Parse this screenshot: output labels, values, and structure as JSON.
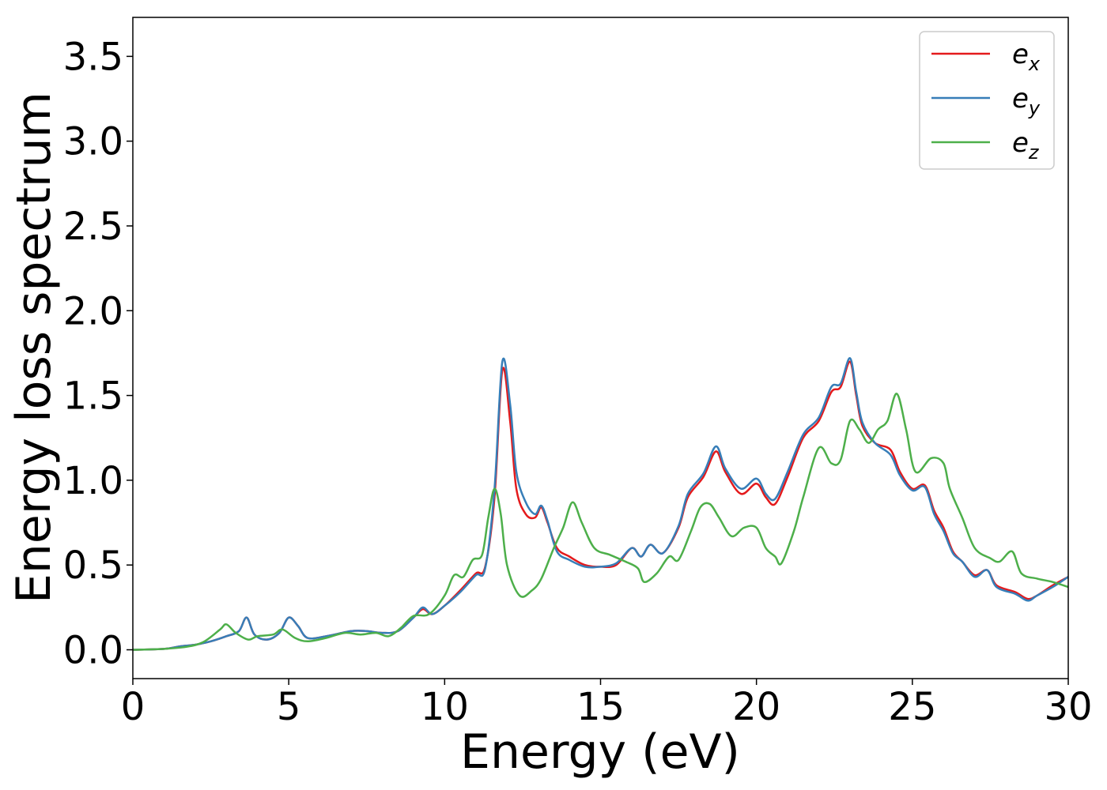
{
  "chart_data": {
    "type": "line",
    "xlabel": "Energy (eV)",
    "ylabel": "Energy loss spectrum",
    "xlim": [
      0,
      30
    ],
    "ylim": [
      -0.17,
      3.73
    ],
    "xticks": [
      "0",
      "5",
      "10",
      "15",
      "20",
      "25",
      "30"
    ],
    "yticks": [
      "0.0",
      "0.5",
      "1.0",
      "1.5",
      "2.0",
      "2.5",
      "3.0",
      "3.5"
    ],
    "grid": false,
    "legend_position": "top-right",
    "series": [
      {
        "name": "e_x",
        "label_main": "e",
        "label_sub": "x",
        "color": "#e41a1c",
        "points": [
          [
            0,
            0.0
          ],
          [
            1,
            0.005
          ],
          [
            1.5,
            0.02
          ],
          [
            2,
            0.03
          ],
          [
            2.5,
            0.05
          ],
          [
            3,
            0.08
          ],
          [
            3.4,
            0.11
          ],
          [
            3.65,
            0.19
          ],
          [
            3.9,
            0.09
          ],
          [
            4.3,
            0.06
          ],
          [
            4.7,
            0.1
          ],
          [
            5.0,
            0.19
          ],
          [
            5.3,
            0.14
          ],
          [
            5.6,
            0.07
          ],
          [
            6.2,
            0.08
          ],
          [
            7,
            0.11
          ],
          [
            7.5,
            0.11
          ],
          [
            8,
            0.1
          ],
          [
            8.5,
            0.11
          ],
          [
            9,
            0.19
          ],
          [
            9.3,
            0.24
          ],
          [
            9.6,
            0.21
          ],
          [
            10,
            0.26
          ],
          [
            10.5,
            0.35
          ],
          [
            11,
            0.45
          ],
          [
            11.3,
            0.49
          ],
          [
            11.6,
            0.9
          ],
          [
            11.85,
            1.65
          ],
          [
            12.1,
            1.35
          ],
          [
            12.3,
            0.95
          ],
          [
            12.6,
            0.8
          ],
          [
            12.9,
            0.78
          ],
          [
            13.1,
            0.84
          ],
          [
            13.3,
            0.75
          ],
          [
            13.6,
            0.6
          ],
          [
            14,
            0.55
          ],
          [
            14.5,
            0.5
          ],
          [
            15,
            0.49
          ],
          [
            15.5,
            0.5
          ],
          [
            16,
            0.6
          ],
          [
            16.3,
            0.55
          ],
          [
            16.6,
            0.62
          ],
          [
            17,
            0.57
          ],
          [
            17.5,
            0.72
          ],
          [
            17.8,
            0.9
          ],
          [
            18.3,
            1.02
          ],
          [
            18.7,
            1.17
          ],
          [
            19,
            1.05
          ],
          [
            19.5,
            0.92
          ],
          [
            20,
            0.98
          ],
          [
            20.3,
            0.9
          ],
          [
            20.6,
            0.86
          ],
          [
            21,
            1.02
          ],
          [
            21.5,
            1.25
          ],
          [
            22,
            1.35
          ],
          [
            22.4,
            1.52
          ],
          [
            22.7,
            1.55
          ],
          [
            23.0,
            1.7
          ],
          [
            23.2,
            1.5
          ],
          [
            23.4,
            1.32
          ],
          [
            23.8,
            1.22
          ],
          [
            24.3,
            1.18
          ],
          [
            24.6,
            1.05
          ],
          [
            25,
            0.95
          ],
          [
            25.4,
            0.97
          ],
          [
            25.7,
            0.82
          ],
          [
            26,
            0.72
          ],
          [
            26.3,
            0.58
          ],
          [
            26.6,
            0.52
          ],
          [
            27,
            0.44
          ],
          [
            27.4,
            0.47
          ],
          [
            27.7,
            0.38
          ],
          [
            28.3,
            0.34
          ],
          [
            28.7,
            0.3
          ],
          [
            29,
            0.32
          ],
          [
            29.5,
            0.38
          ],
          [
            30,
            0.43
          ]
        ]
      },
      {
        "name": "e_y",
        "label_main": "e",
        "label_sub": "y",
        "color": "#377eb8",
        "points": [
          [
            0,
            0.0
          ],
          [
            1,
            0.005
          ],
          [
            1.5,
            0.02
          ],
          [
            2,
            0.03
          ],
          [
            2.5,
            0.05
          ],
          [
            3,
            0.08
          ],
          [
            3.4,
            0.11
          ],
          [
            3.65,
            0.19
          ],
          [
            3.9,
            0.09
          ],
          [
            4.3,
            0.06
          ],
          [
            4.7,
            0.1
          ],
          [
            5.0,
            0.19
          ],
          [
            5.3,
            0.14
          ],
          [
            5.6,
            0.07
          ],
          [
            6.2,
            0.08
          ],
          [
            7,
            0.11
          ],
          [
            7.5,
            0.11
          ],
          [
            8,
            0.1
          ],
          [
            8.5,
            0.11
          ],
          [
            9,
            0.19
          ],
          [
            9.3,
            0.25
          ],
          [
            9.6,
            0.21
          ],
          [
            10,
            0.26
          ],
          [
            10.5,
            0.34
          ],
          [
            11,
            0.44
          ],
          [
            11.3,
            0.48
          ],
          [
            11.6,
            0.95
          ],
          [
            11.85,
            1.7
          ],
          [
            12.1,
            1.45
          ],
          [
            12.3,
            1.05
          ],
          [
            12.6,
            0.87
          ],
          [
            12.9,
            0.8
          ],
          [
            13.1,
            0.85
          ],
          [
            13.3,
            0.76
          ],
          [
            13.6,
            0.58
          ],
          [
            14,
            0.53
          ],
          [
            14.5,
            0.49
          ],
          [
            15,
            0.49
          ],
          [
            15.5,
            0.51
          ],
          [
            16,
            0.6
          ],
          [
            16.3,
            0.55
          ],
          [
            16.6,
            0.62
          ],
          [
            17,
            0.57
          ],
          [
            17.5,
            0.73
          ],
          [
            17.8,
            0.92
          ],
          [
            18.3,
            1.04
          ],
          [
            18.7,
            1.2
          ],
          [
            19,
            1.07
          ],
          [
            19.5,
            0.95
          ],
          [
            20,
            1.01
          ],
          [
            20.3,
            0.92
          ],
          [
            20.6,
            0.89
          ],
          [
            21,
            1.05
          ],
          [
            21.5,
            1.27
          ],
          [
            22,
            1.37
          ],
          [
            22.4,
            1.55
          ],
          [
            22.7,
            1.57
          ],
          [
            23.0,
            1.72
          ],
          [
            23.2,
            1.52
          ],
          [
            23.4,
            1.34
          ],
          [
            23.8,
            1.22
          ],
          [
            24.3,
            1.15
          ],
          [
            24.6,
            1.03
          ],
          [
            25,
            0.94
          ],
          [
            25.4,
            0.96
          ],
          [
            25.7,
            0.8
          ],
          [
            26,
            0.7
          ],
          [
            26.3,
            0.57
          ],
          [
            26.6,
            0.52
          ],
          [
            27,
            0.43
          ],
          [
            27.4,
            0.47
          ],
          [
            27.7,
            0.37
          ],
          [
            28.3,
            0.33
          ],
          [
            28.7,
            0.29
          ],
          [
            29,
            0.32
          ],
          [
            29.5,
            0.37
          ],
          [
            30,
            0.43
          ]
        ]
      },
      {
        "name": "e_z",
        "label_main": "e",
        "label_sub": "z",
        "color": "#4daf4a",
        "points": [
          [
            0,
            0.0
          ],
          [
            1,
            0.005
          ],
          [
            1.8,
            0.02
          ],
          [
            2.3,
            0.05
          ],
          [
            2.8,
            0.12
          ],
          [
            3.0,
            0.15
          ],
          [
            3.3,
            0.1
          ],
          [
            3.7,
            0.06
          ],
          [
            4.0,
            0.08
          ],
          [
            4.5,
            0.09
          ],
          [
            4.8,
            0.12
          ],
          [
            5.2,
            0.07
          ],
          [
            5.6,
            0.05
          ],
          [
            6.2,
            0.07
          ],
          [
            6.8,
            0.1
          ],
          [
            7.3,
            0.09
          ],
          [
            7.8,
            0.1
          ],
          [
            8.2,
            0.08
          ],
          [
            8.6,
            0.13
          ],
          [
            9,
            0.2
          ],
          [
            9.5,
            0.21
          ],
          [
            10,
            0.32
          ],
          [
            10.3,
            0.44
          ],
          [
            10.6,
            0.43
          ],
          [
            10.9,
            0.53
          ],
          [
            11.2,
            0.56
          ],
          [
            11.4,
            0.78
          ],
          [
            11.6,
            0.95
          ],
          [
            11.8,
            0.8
          ],
          [
            12.0,
            0.5
          ],
          [
            12.4,
            0.32
          ],
          [
            12.8,
            0.35
          ],
          [
            13.1,
            0.42
          ],
          [
            13.5,
            0.6
          ],
          [
            13.8,
            0.72
          ],
          [
            14.1,
            0.87
          ],
          [
            14.4,
            0.75
          ],
          [
            14.8,
            0.6
          ],
          [
            15.3,
            0.56
          ],
          [
            15.8,
            0.52
          ],
          [
            16.2,
            0.48
          ],
          [
            16.4,
            0.4
          ],
          [
            16.8,
            0.45
          ],
          [
            17.2,
            0.55
          ],
          [
            17.5,
            0.53
          ],
          [
            17.9,
            0.7
          ],
          [
            18.2,
            0.84
          ],
          [
            18.5,
            0.86
          ],
          [
            18.8,
            0.78
          ],
          [
            19.2,
            0.67
          ],
          [
            19.6,
            0.72
          ],
          [
            20.0,
            0.72
          ],
          [
            20.3,
            0.6
          ],
          [
            20.6,
            0.55
          ],
          [
            20.8,
            0.51
          ],
          [
            21.2,
            0.7
          ],
          [
            21.5,
            0.9
          ],
          [
            22.0,
            1.19
          ],
          [
            22.4,
            1.1
          ],
          [
            22.7,
            1.12
          ],
          [
            23.0,
            1.35
          ],
          [
            23.3,
            1.3
          ],
          [
            23.6,
            1.22
          ],
          [
            23.9,
            1.3
          ],
          [
            24.2,
            1.35
          ],
          [
            24.5,
            1.51
          ],
          [
            24.8,
            1.3
          ],
          [
            25.1,
            1.05
          ],
          [
            25.6,
            1.13
          ],
          [
            26.0,
            1.1
          ],
          [
            26.2,
            0.95
          ],
          [
            26.6,
            0.78
          ],
          [
            27.0,
            0.6
          ],
          [
            27.5,
            0.54
          ],
          [
            27.8,
            0.52
          ],
          [
            28.2,
            0.58
          ],
          [
            28.5,
            0.45
          ],
          [
            29.0,
            0.42
          ],
          [
            29.5,
            0.4
          ],
          [
            30,
            0.37
          ]
        ]
      }
    ]
  }
}
